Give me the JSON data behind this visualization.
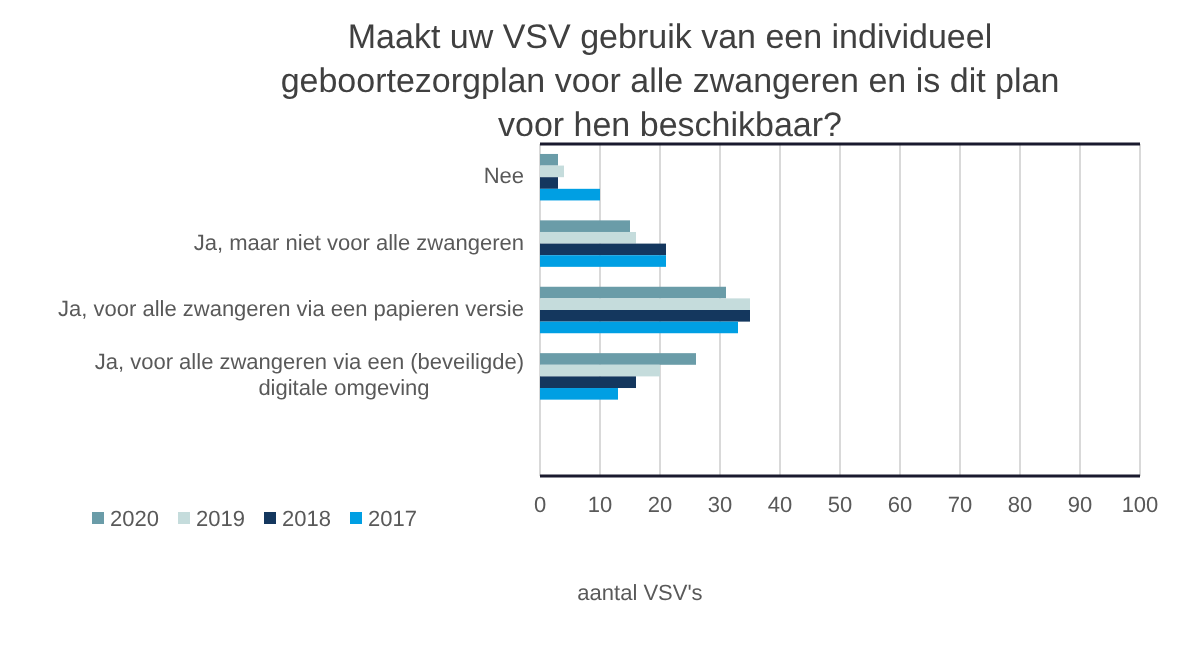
{
  "chart_data": {
    "type": "bar",
    "orientation": "horizontal",
    "title": "Maakt uw VSV gebruik van een individueel geboortezorgplan voor alle zwangeren en is dit plan voor hen beschikbaar?",
    "xlabel": "aantal VSV's",
    "categories": [
      "Nee",
      "Ja, maar niet voor alle zwangeren",
      "Ja, voor alle zwangeren via een papieren versie",
      "Ja, voor alle zwangeren via een (beveiligde) digitale omgeving",
      null
    ],
    "series": [
      {
        "name": "2020",
        "color": "#6a9ca8",
        "values": [
          3,
          15,
          31,
          26,
          null
        ]
      },
      {
        "name": "2019",
        "color": "#c5dcdc",
        "values": [
          4,
          16,
          35,
          20,
          null
        ]
      },
      {
        "name": "2018",
        "color": "#14375e",
        "values": [
          3,
          21,
          35,
          16,
          null
        ]
      },
      {
        "name": "2017",
        "color": "#009fe3",
        "values": [
          10,
          21,
          33,
          13,
          null
        ]
      }
    ],
    "xlim": [
      0,
      100
    ],
    "xticks": [
      0,
      10,
      20,
      30,
      40,
      50,
      60,
      70,
      80,
      90,
      100
    ],
    "grid": "x",
    "legend": "bottom left"
  }
}
